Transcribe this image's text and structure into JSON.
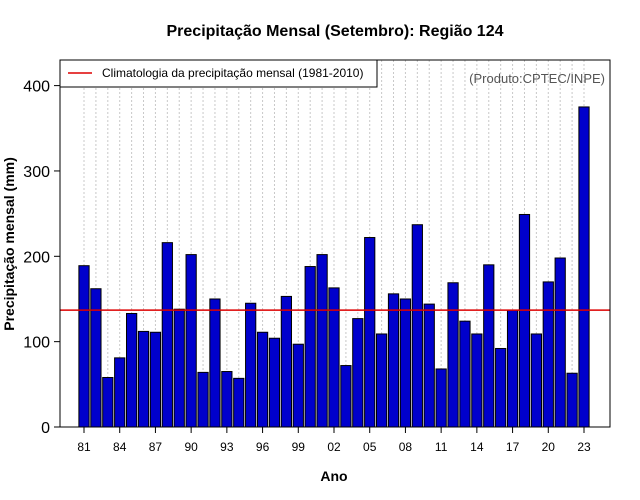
{
  "chart_data": {
    "type": "bar",
    "title": "Precipitação Mensal (Setembro): Região 124",
    "xlabel": "Ano",
    "ylabel": "Precipitação mensal (mm)",
    "ylim": [
      0,
      430
    ],
    "yticks": [
      0,
      100,
      200,
      300,
      400
    ],
    "xtick_labels": [
      "81",
      "84",
      "87",
      "90",
      "93",
      "96",
      "99",
      "02",
      "05",
      "08",
      "11",
      "14",
      "17",
      "20",
      "23"
    ],
    "categories": [
      "1981",
      "1982",
      "1983",
      "1984",
      "1985",
      "1986",
      "1987",
      "1988",
      "1989",
      "1990",
      "1991",
      "1992",
      "1993",
      "1994",
      "1995",
      "1996",
      "1997",
      "1998",
      "1999",
      "2000",
      "2001",
      "2002",
      "2003",
      "2004",
      "2005",
      "2006",
      "2007",
      "2008",
      "2009",
      "2010",
      "2011",
      "2012",
      "2013",
      "2014",
      "2015",
      "2016",
      "2017",
      "2018",
      "2019",
      "2020",
      "2021",
      "2022",
      "2023"
    ],
    "values": [
      189,
      162,
      58,
      81,
      133,
      112,
      111,
      216,
      138,
      202,
      64,
      150,
      65,
      57,
      145,
      111,
      104,
      153,
      97,
      188,
      202,
      163,
      72,
      127,
      222,
      109,
      156,
      150,
      237,
      144,
      68,
      169,
      124,
      109,
      190,
      92,
      137,
      249,
      109,
      170,
      198,
      63,
      375
    ],
    "bar_color": "#0000cc",
    "climatology": {
      "label": "Climatologia da precipitação mensal (1981-2010)",
      "value": 137,
      "color": "#dd0000"
    },
    "legend_position": "top-left",
    "credit": "(Produto:CPTEC/INPE)",
    "grid": "vertical dotted"
  }
}
